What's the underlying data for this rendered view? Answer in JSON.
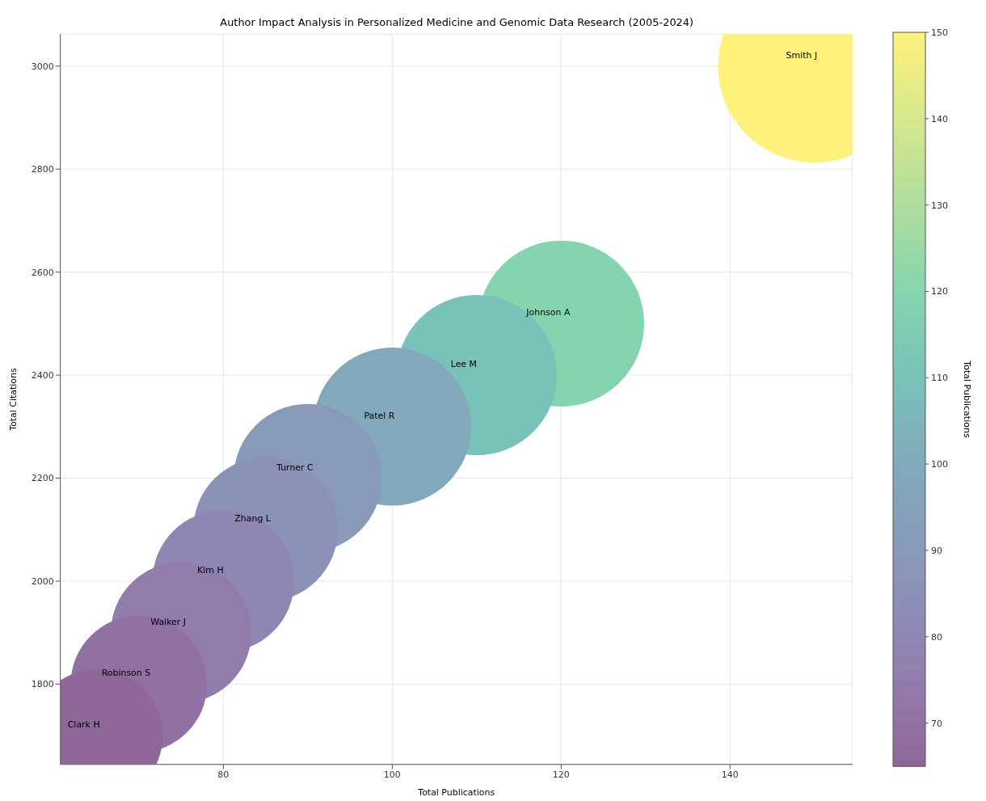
{
  "chart_data": {
    "type": "bubble",
    "title": "Author Impact Analysis in Personalized Medicine and Genomic Data Research (2005-2024)",
    "xlabel": "Total Publications",
    "ylabel": "Total Citations",
    "clabel": "Total Publications",
    "series": [
      {
        "name": "Smith J",
        "color": "#fef17c",
        "x": [
          150
        ],
        "values": [
          3000
        ],
        "sizes": [
          1
        ],
        "cvalues": [
          150
        ]
      },
      {
        "name": "Johnson A",
        "color": "#86d4af",
        "x": [
          120
        ],
        "values": [
          2500
        ],
        "sizes": [
          0.74
        ],
        "cvalues": [
          120
        ]
      },
      {
        "name": "Lee M",
        "color": "#79c2b9",
        "x": [
          110
        ],
        "values": [
          2400
        ],
        "sizes": [
          0.69
        ],
        "cvalues": [
          110
        ]
      },
      {
        "name": "Patel R",
        "color": "#81a9bb",
        "x": [
          100
        ],
        "values": [
          2300
        ],
        "sizes": [
          0.67
        ],
        "cvalues": [
          100
        ]
      },
      {
        "name": "Turner C",
        "color": "#8899ba",
        "x": [
          90
        ],
        "values": [
          2200
        ],
        "sizes": [
          0.59
        ],
        "cvalues": [
          90
        ]
      },
      {
        "name": "Zhang L",
        "color": "#8c91b8",
        "x": [
          85
        ],
        "values": [
          2100
        ],
        "sizes": [
          0.56
        ],
        "cvalues": [
          85
        ]
      },
      {
        "name": "Kim H",
        "color": "#8f86b3",
        "x": [
          80
        ],
        "values": [
          2000
        ],
        "sizes": [
          0.54
        ],
        "cvalues": [
          80
        ]
      },
      {
        "name": "Walker J",
        "color": "#917cac",
        "x": [
          75
        ],
        "values": [
          1900
        ],
        "sizes": [
          0.53
        ],
        "cvalues": [
          75
        ]
      },
      {
        "name": "Robinson S",
        "color": "#9171a3",
        "x": [
          70
        ],
        "values": [
          1800
        ],
        "sizes": [
          0.5
        ],
        "cvalues": [
          70
        ]
      },
      {
        "name": "Clark H",
        "color": "#8f6798",
        "x": [
          65
        ],
        "values": [
          1700
        ],
        "sizes": [
          0.47
        ],
        "cvalues": [
          65
        ]
      }
    ],
    "xlim": [
      60.7,
      154.5
    ],
    "xticks": [
      80,
      100,
      120,
      140
    ],
    "ylim": [
      1644,
      3062
    ],
    "yticks": [
      1800,
      2000,
      2200,
      2400,
      2600,
      2800,
      3000
    ],
    "clim": [
      65,
      150
    ],
    "cticks": [
      70,
      80,
      90,
      100,
      110,
      120,
      130,
      140,
      150
    ],
    "grid": true,
    "legend": false
  }
}
